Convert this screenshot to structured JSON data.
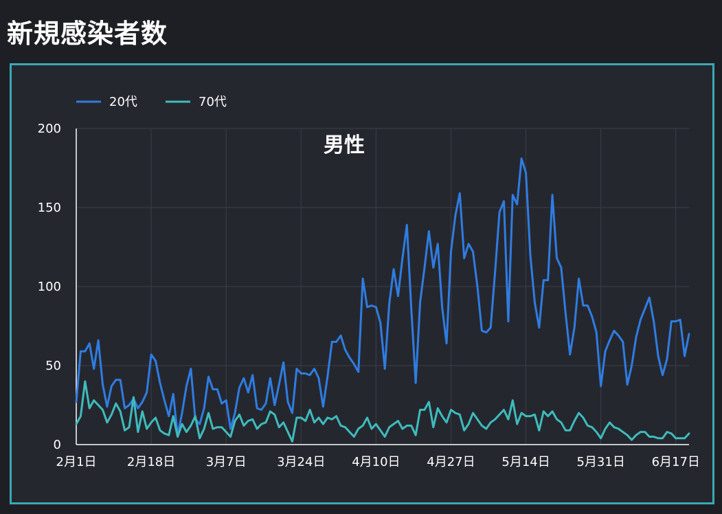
{
  "page": {
    "title": "新規感染者数"
  },
  "colors": {
    "series_20": "#2f7de1",
    "series_70": "#3ebcbc",
    "grid": "#3b3e48",
    "axis": "#ffffff",
    "frame": "#3aa9b4"
  },
  "chart_data": {
    "type": "line",
    "title": "男性",
    "xlabel": "",
    "ylabel": "",
    "ylim": [
      0,
      200
    ],
    "yticks": [
      0,
      50,
      100,
      150,
      200
    ],
    "xticks": [
      "2月1日",
      "2月18日",
      "3月7日",
      "3月24日",
      "4月10日",
      "4月27日",
      "5月14日",
      "5月31日",
      "6月17日"
    ],
    "xtick_index": [
      0,
      17,
      34,
      51,
      68,
      85,
      102,
      119,
      136
    ],
    "grid": true,
    "legend_position": "top-left",
    "series": [
      {
        "name": "20代",
        "values": [
          27,
          59,
          59,
          64,
          48,
          66,
          38,
          24,
          37,
          41,
          41,
          23,
          25,
          29,
          23,
          27,
          33,
          57,
          53,
          39,
          28,
          18,
          32,
          6,
          20,
          37,
          48,
          16,
          13,
          23,
          43,
          35,
          35,
          26,
          28,
          10,
          20,
          36,
          42,
          33,
          44,
          23,
          22,
          26,
          42,
          25,
          38,
          52,
          27,
          20,
          48,
          45,
          45,
          44,
          48,
          42,
          24,
          43,
          65,
          65,
          69,
          60,
          55,
          51,
          46,
          105,
          87,
          88,
          87,
          77,
          48,
          89,
          111,
          94,
          118,
          139,
          86,
          39,
          90,
          112,
          135,
          112,
          127,
          87,
          64,
          122,
          145,
          159,
          118,
          127,
          122,
          100,
          72,
          71,
          74,
          109,
          147,
          154,
          78,
          158,
          152,
          181,
          172,
          120,
          90,
          74,
          104,
          104,
          158,
          118,
          112,
          83,
          57,
          74,
          105,
          88,
          88,
          81,
          71,
          37,
          59,
          66,
          72,
          69,
          65,
          38,
          50,
          68,
          79,
          86,
          93,
          78,
          56,
          44,
          54,
          78,
          78,
          79,
          56,
          70
        ]
      },
      {
        "name": "70代",
        "values": [
          13,
          18,
          40,
          23,
          28,
          25,
          22,
          14,
          19,
          26,
          21,
          9,
          11,
          30,
          8,
          21,
          10,
          14,
          17,
          9,
          7,
          6,
          18,
          5,
          13,
          8,
          12,
          18,
          4,
          10,
          20,
          10,
          11,
          11,
          8,
          5,
          15,
          19,
          12,
          15,
          16,
          10,
          13,
          14,
          21,
          19,
          11,
          14,
          8,
          2,
          17,
          17,
          15,
          22,
          14,
          17,
          13,
          17,
          16,
          18,
          12,
          11,
          8,
          5,
          10,
          12,
          17,
          10,
          13,
          9,
          5,
          11,
          13,
          15,
          10,
          12,
          12,
          6,
          22,
          22,
          27,
          11,
          23,
          18,
          14,
          22,
          20,
          19,
          9,
          13,
          20,
          16,
          12,
          10,
          14,
          16,
          19,
          22,
          16,
          28,
          13,
          20,
          18,
          18,
          19,
          9,
          21,
          18,
          21,
          16,
          14,
          9,
          9,
          15,
          20,
          17,
          12,
          11,
          8,
          4,
          10,
          14,
          11,
          10,
          8,
          6,
          3,
          6,
          8,
          8,
          5,
          5,
          4,
          4,
          8,
          7,
          4,
          4,
          4,
          7
        ]
      }
    ]
  }
}
